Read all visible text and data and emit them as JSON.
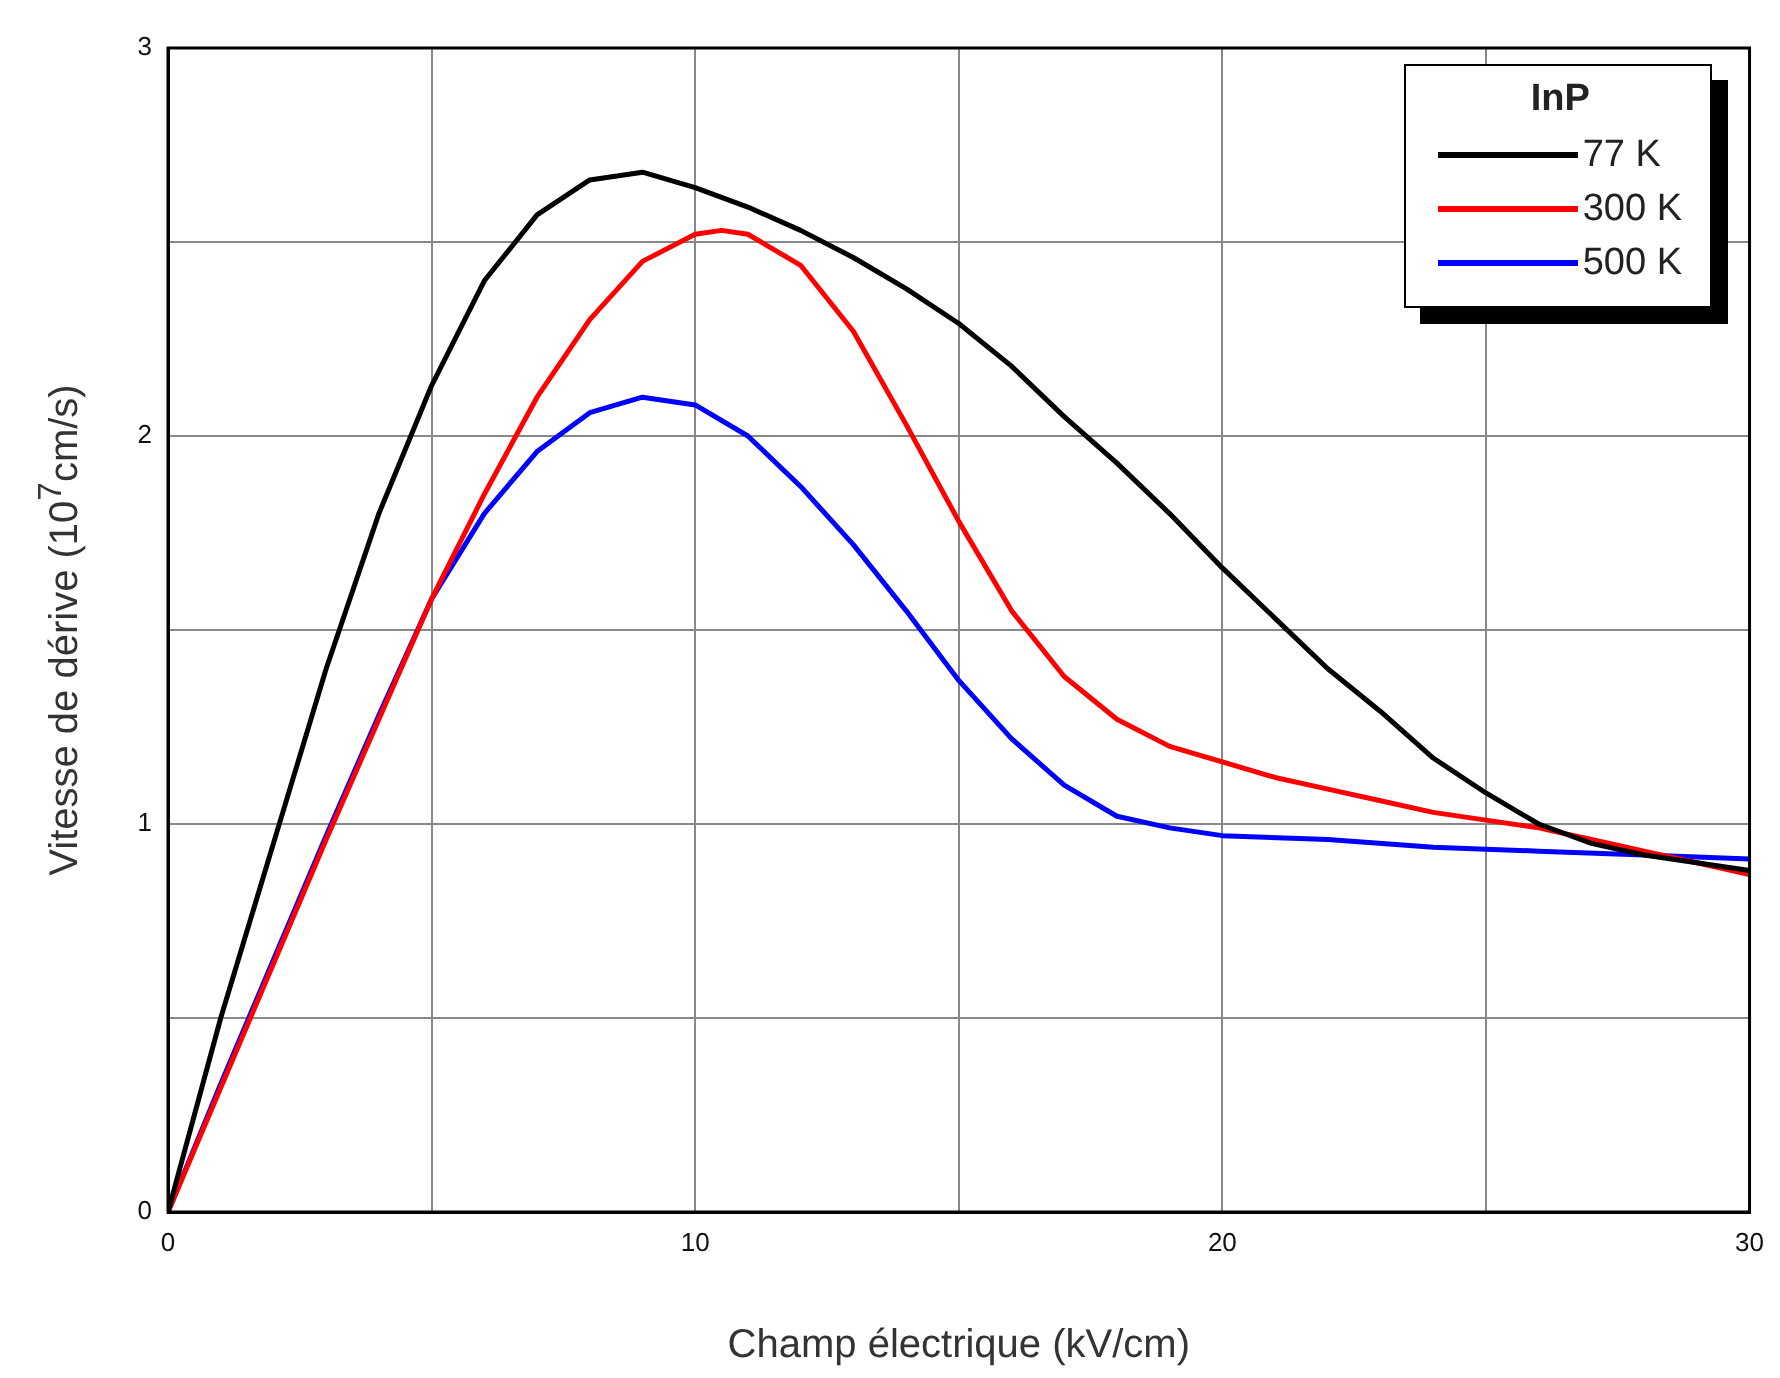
{
  "chart_data": {
    "type": "line",
    "xlabel": "Champ électrique (kV/cm)",
    "ylabel": "Vitesse de dérive (10$^{7}$cm/s)",
    "legend_title": "InP",
    "legend": "top right",
    "grid": true,
    "marker": "none",
    "line_style": "solid",
    "xlim": [
      0,
      30
    ],
    "xticks": [
      0,
      {
        "value": 5,
        "label": null
      },
      10,
      {
        "value": 15,
        "label": null
      },
      20,
      {
        "value": 25,
        "label": null
      },
      30
    ],
    "ylim": [
      0,
      3
    ],
    "yticks": [
      0,
      {
        "value": 0.5,
        "label": null
      },
      1,
      {
        "value": 1.5,
        "label": null
      },
      2,
      {
        "value": 2.5,
        "label": null
      },
      3
    ],
    "series": [
      {
        "name": "77 K",
        "color": "#000000",
        "x": [
          0,
          1,
          2,
          3,
          4,
          5,
          6,
          7,
          8,
          9,
          10,
          11,
          12,
          13,
          14,
          15,
          16,
          17,
          18,
          19,
          20,
          21,
          22,
          23,
          24,
          25,
          26,
          27,
          28,
          29,
          30
        ],
        "values": [
          0,
          0.5,
          0.95,
          1.4,
          1.8,
          2.13,
          2.4,
          2.57,
          2.66,
          2.68,
          2.64,
          2.59,
          2.53,
          2.46,
          2.38,
          2.29,
          2.18,
          2.05,
          1.93,
          1.8,
          1.66,
          1.53,
          1.4,
          1.29,
          1.17,
          1.08,
          1.0,
          0.95,
          0.92,
          0.9,
          0.88
        ]
      },
      {
        "name": "300 K",
        "color": "#ff0000",
        "x": [
          0,
          1,
          2,
          3,
          4,
          5,
          6,
          7,
          8,
          9,
          10,
          10.5,
          11,
          12,
          13,
          14,
          15,
          16,
          17,
          18,
          19,
          20,
          21,
          22,
          23,
          24,
          25,
          26,
          27,
          28,
          29,
          30
        ],
        "values": [
          0,
          0.32,
          0.64,
          0.96,
          1.27,
          1.58,
          1.85,
          2.1,
          2.3,
          2.45,
          2.52,
          2.53,
          2.52,
          2.44,
          2.27,
          2.03,
          1.78,
          1.55,
          1.38,
          1.27,
          1.2,
          1.16,
          1.12,
          1.09,
          1.06,
          1.03,
          1.01,
          0.99,
          0.96,
          0.93,
          0.9,
          0.87
        ]
      },
      {
        "name": "500 K",
        "color": "#0000ff",
        "x": [
          0,
          1,
          2,
          3,
          4,
          5,
          6,
          7,
          8,
          9,
          10,
          11,
          12,
          13,
          14,
          15,
          16,
          17,
          18,
          19,
          20,
          22,
          24,
          26,
          28,
          30
        ],
        "values": [
          0,
          0.33,
          0.65,
          0.97,
          1.28,
          1.58,
          1.8,
          1.96,
          2.06,
          2.1,
          2.08,
          2.0,
          1.87,
          1.72,
          1.55,
          1.37,
          1.22,
          1.1,
          1.02,
          0.99,
          0.97,
          0.96,
          0.94,
          0.93,
          0.92,
          0.91
        ]
      }
    ]
  }
}
